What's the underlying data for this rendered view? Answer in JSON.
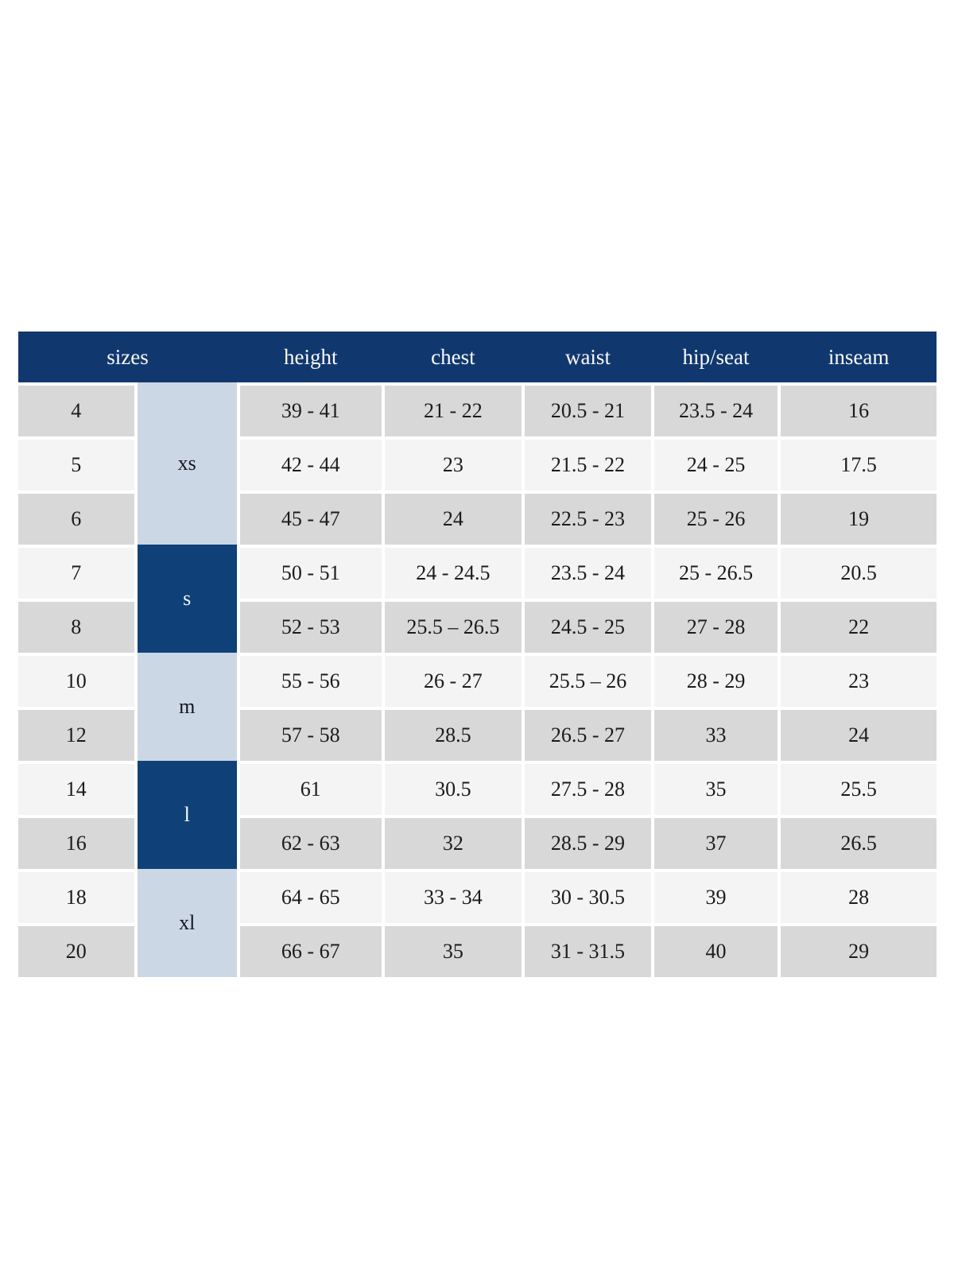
{
  "colors": {
    "header_navy": "#11386e",
    "group_dark_blue": "#0f4178",
    "group_light_blue": "#cbd7e5",
    "row_gray": "#d8d8d8",
    "row_light": "#f4f4f4",
    "page_background": "#ffffff"
  },
  "table": {
    "header": {
      "sizes": "sizes",
      "height": "height",
      "chest": "chest",
      "waist": "waist",
      "hip_seat": "hip/seat",
      "inseam": "inseam"
    },
    "groups": [
      {
        "label": "xs",
        "rows_spanned": 3,
        "style": "light"
      },
      {
        "label": "s",
        "rows_spanned": 2,
        "style": "dark"
      },
      {
        "label": "m",
        "rows_spanned": 2,
        "style": "light"
      },
      {
        "label": "l",
        "rows_spanned": 2,
        "style": "dark"
      },
      {
        "label": "xl",
        "rows_spanned": 2,
        "style": "light"
      }
    ],
    "rows": [
      {
        "size": "4",
        "height": "39 - 41",
        "chest": "21 - 22",
        "waist": "20.5 - 21",
        "hip_seat": "23.5 - 24",
        "inseam": "16"
      },
      {
        "size": "5",
        "height": "42 - 44",
        "chest": "23",
        "waist": "21.5 - 22",
        "hip_seat": "24 - 25",
        "inseam": "17.5"
      },
      {
        "size": "6",
        "height": "45 - 47",
        "chest": "24",
        "waist": "22.5 - 23",
        "hip_seat": "25 - 26",
        "inseam": "19"
      },
      {
        "size": "7",
        "height": "50 - 51",
        "chest": "24 - 24.5",
        "waist": "23.5 - 24",
        "hip_seat": "25 - 26.5",
        "inseam": "20.5"
      },
      {
        "size": "8",
        "height": "52 - 53",
        "chest": "25.5 – 26.5",
        "waist": "24.5 - 25",
        "hip_seat": "27 - 28",
        "inseam": "22"
      },
      {
        "size": "10",
        "height": "55 - 56",
        "chest": "26 - 27",
        "waist": "25.5 – 26",
        "hip_seat": "28 - 29",
        "inseam": "23"
      },
      {
        "size": "12",
        "height": "57 - 58",
        "chest": "28.5",
        "waist": "26.5 - 27",
        "hip_seat": "33",
        "inseam": "24"
      },
      {
        "size": "14",
        "height": "61",
        "chest": "30.5",
        "waist": "27.5 - 28",
        "hip_seat": "35",
        "inseam": "25.5"
      },
      {
        "size": "16",
        "height": "62 - 63",
        "chest": "32",
        "waist": "28.5 - 29",
        "hip_seat": "37",
        "inseam": "26.5"
      },
      {
        "size": "18",
        "height": "64 - 65",
        "chest": "33 - 34",
        "waist": "30 - 30.5",
        "hip_seat": "39",
        "inseam": "28"
      },
      {
        "size": "20",
        "height": "66 - 67",
        "chest": "35",
        "waist": "31 - 31.5",
        "hip_seat": "40",
        "inseam": "29"
      }
    ]
  }
}
